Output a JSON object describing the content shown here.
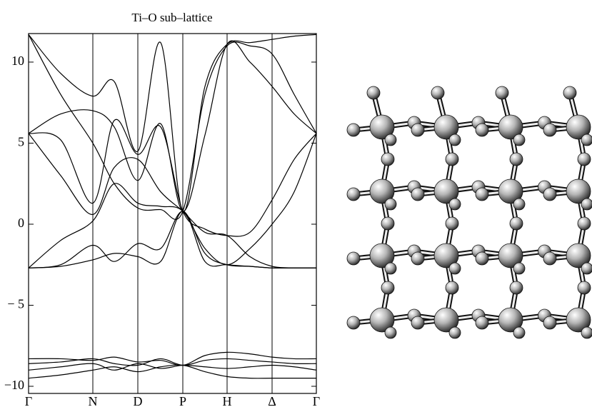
{
  "chart_data": {
    "type": "line",
    "title": "Ti–O sub–lattice",
    "x": [
      0,
      0.45,
      0.9,
      1.2,
      1.53,
      1.85,
      2.16,
      2.47,
      2.78,
      3.1,
      3.41,
      3.72,
      4.03
    ],
    "xlim": [
      0,
      4.03
    ],
    "xticks": [
      {
        "value": 0,
        "label": "Γ"
      },
      {
        "value": 0.9,
        "label": "N"
      },
      {
        "value": 1.53,
        "label": "D"
      },
      {
        "value": 2.16,
        "label": "P"
      },
      {
        "value": 2.78,
        "label": "H"
      },
      {
        "value": 3.41,
        "label": "Δ"
      },
      {
        "value": 4.03,
        "label": "Γ"
      }
    ],
    "ylim": [
      -10.44,
      11.76
    ],
    "yticks": [
      {
        "value": -10,
        "label": "−10"
      },
      {
        "value": -5,
        "label": "− 5"
      },
      0,
      5,
      10
    ],
    "grid": true,
    "series": [
      {
        "color": "#000000",
        "values": [
          11.7,
          9.3,
          7.9,
          8.8,
          4.5,
          11.2,
          0.8,
          8.5,
          11.1,
          11.2,
          11.4,
          11.6,
          11.7
        ]
      },
      {
        "color": "#000000",
        "values": [
          11.7,
          8.0,
          5.0,
          2.5,
          1.0,
          0.9,
          0.8,
          8.0,
          11.0,
          11.0,
          10.5,
          8.0,
          5.6
        ]
      },
      {
        "color": "#000000",
        "values": [
          5.6,
          6.8,
          7.0,
          6.0,
          2.7,
          6.2,
          0.8,
          5.5,
          11.1,
          10.0,
          8.5,
          6.8,
          5.6
        ]
      },
      {
        "color": "#000000",
        "values": [
          5.6,
          5.2,
          1.3,
          6.4,
          4.3,
          6.0,
          0.8,
          -0.3,
          -0.7,
          -0.5,
          1.5,
          4.0,
          5.6
        ]
      },
      {
        "color": "#000000",
        "values": [
          5.6,
          3.0,
          0.6,
          3.5,
          4.0,
          2.0,
          0.8,
          -0.5,
          -0.7,
          -2.0,
          -2.6,
          -2.7,
          -2.7
        ]
      },
      {
        "color": "#000000",
        "values": [
          -2.7,
          -1.0,
          0.2,
          2.5,
          1.3,
          1.1,
          0.8,
          -1.5,
          -2.5,
          -1.5,
          0.0,
          2.0,
          5.6
        ]
      },
      {
        "color": "#000000",
        "values": [
          -2.7,
          -2.5,
          -1.3,
          -2.3,
          -1.2,
          -1.5,
          0.8,
          -1.8,
          -2.5,
          -2.6,
          -2.7,
          -2.7,
          -2.7
        ]
      },
      {
        "color": "#000000",
        "values": [
          -2.7,
          -2.6,
          -2.2,
          -1.8,
          -2.0,
          -2.3,
          0.8,
          -2.3,
          -2.5,
          -2.6,
          -2.7,
          -2.7,
          -2.7
        ]
      },
      {
        "color": "#000000",
        "values": [
          -8.3,
          -8.3,
          -8.4,
          -8.2,
          -8.5,
          -8.4,
          -8.7,
          -8.1,
          -7.9,
          -8.0,
          -8.2,
          -8.3,
          -8.3
        ]
      },
      {
        "color": "#000000",
        "values": [
          -8.6,
          -8.5,
          -8.3,
          -8.6,
          -8.7,
          -8.3,
          -8.7,
          -8.4,
          -8.3,
          -8.4,
          -8.5,
          -8.6,
          -8.6
        ]
      },
      {
        "color": "#000000",
        "values": [
          -9.0,
          -8.8,
          -8.6,
          -9.0,
          -8.6,
          -8.9,
          -8.7,
          -8.8,
          -8.9,
          -8.8,
          -8.7,
          -8.8,
          -9.0
        ]
      },
      {
        "color": "#000000",
        "values": [
          -9.5,
          -9.3,
          -9.0,
          -8.8,
          -9.1,
          -8.8,
          -8.7,
          -9.1,
          -9.4,
          -9.5,
          -9.5,
          -9.5,
          -9.5
        ]
      }
    ]
  }
}
